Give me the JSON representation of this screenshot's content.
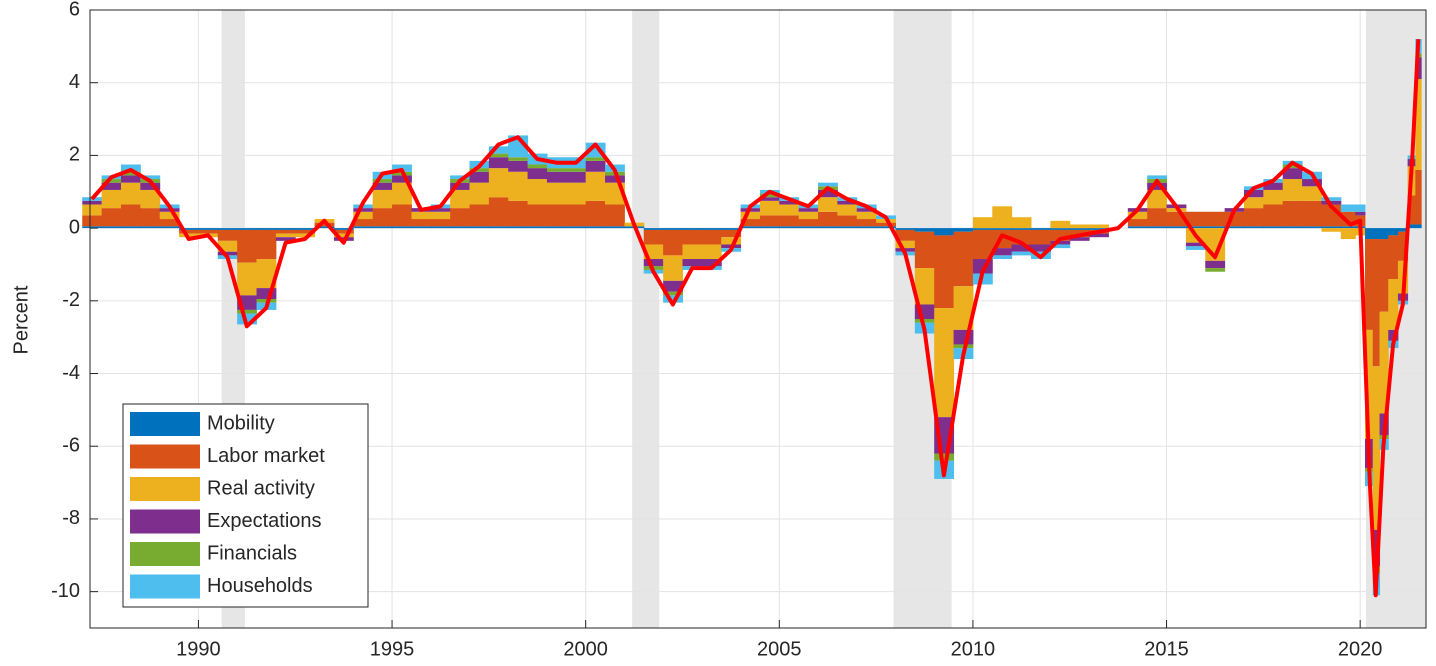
{
  "chart_data": {
    "type": "stacked-bar-line",
    "ylabel": "Percent",
    "x": [
      1987.25,
      1987.75,
      1988.25,
      1988.75,
      1989.25,
      1989.75,
      1990.25,
      1990.75,
      1991.25,
      1991.75,
      1992.25,
      1992.75,
      1993.25,
      1993.75,
      1994.25,
      1994.75,
      1995.25,
      1995.75,
      1996.25,
      1996.75,
      1997.25,
      1997.75,
      1998.25,
      1998.75,
      1999.25,
      1999.75,
      2000.25,
      2000.75,
      2001.25,
      2001.75,
      2002.25,
      2002.75,
      2003.25,
      2003.75,
      2004.25,
      2004.75,
      2005.25,
      2005.75,
      2006.25,
      2006.75,
      2007.25,
      2007.75,
      2008.25,
      2008.75,
      2009.25,
      2009.75,
      2010.25,
      2010.75,
      2011.25,
      2011.75,
      2012.25,
      2012.75,
      2013.25,
      2013.75,
      2014.25,
      2014.75,
      2015.25,
      2015.75,
      2016.25,
      2016.75,
      2017.25,
      2017.75,
      2018.25,
      2018.75,
      2019.25,
      2019.75,
      2020.0,
      2020.25,
      2020.4,
      2020.6,
      2020.85,
      2021.1,
      2021.35,
      2021.5
    ],
    "series": [
      {
        "name": "Mobility",
        "color": "#0072BD",
        "values": [
          0.05,
          0.05,
          0.05,
          0.05,
          0.05,
          -0.05,
          -0.05,
          -0.05,
          -0.05,
          -0.05,
          -0.05,
          -0.05,
          0.05,
          -0.05,
          0.05,
          0.05,
          0.05,
          0.05,
          0.05,
          0.05,
          0.05,
          0.05,
          0.05,
          0.05,
          0.05,
          0.05,
          0.05,
          0.05,
          0.05,
          -0.05,
          -0.05,
          -0.05,
          -0.05,
          -0.05,
          0.05,
          0.05,
          0.05,
          0.05,
          0.05,
          0.05,
          0.05,
          0.05,
          -0.05,
          -0.1,
          -0.2,
          -0.1,
          -0.05,
          -0.05,
          -0.05,
          -0.05,
          -0.05,
          -0.05,
          -0.05,
          0,
          0.05,
          0.05,
          0.05,
          0.05,
          0.05,
          0.05,
          0.05,
          0.05,
          0.05,
          0.05,
          0.05,
          0.05,
          0.05,
          -0.3,
          -0.3,
          -0.3,
          -0.2,
          -0.1,
          0.1,
          0.1
        ]
      },
      {
        "name": "Labor market",
        "color": "#D95319",
        "values": [
          0.3,
          0.5,
          0.6,
          0.5,
          0.2,
          -0.1,
          -0.1,
          -0.3,
          -0.9,
          -0.8,
          -0.1,
          -0.1,
          0.1,
          -0.1,
          0.2,
          0.5,
          0.6,
          0.2,
          0.2,
          0.5,
          0.6,
          0.8,
          0.7,
          0.6,
          0.6,
          0.6,
          0.7,
          0.6,
          0,
          -0.4,
          -0.7,
          -0.4,
          -0.4,
          -0.2,
          0.2,
          0.3,
          0.3,
          0.2,
          0.4,
          0.3,
          0.2,
          0.1,
          -0.3,
          -1.0,
          -2.0,
          -1.5,
          -0.8,
          -0.5,
          -0.4,
          -0.4,
          -0.3,
          -0.2,
          -0.1,
          0,
          0.2,
          0.5,
          0.4,
          0.4,
          0.4,
          0.4,
          0.5,
          0.6,
          0.7,
          0.7,
          0.6,
          0.4,
          0.3,
          -2.5,
          -3.5,
          -2.0,
          -1.2,
          -0.8,
          0.8,
          1.5
        ]
      },
      {
        "name": "Real activity",
        "color": "#EDB120",
        "values": [
          0.3,
          0.5,
          0.6,
          0.5,
          0.2,
          -0.1,
          -0.1,
          -0.3,
          -0.9,
          -0.8,
          -0.1,
          -0.1,
          0.1,
          -0.1,
          0.2,
          0.5,
          0.6,
          0.2,
          0.2,
          0.5,
          0.6,
          0.8,
          0.8,
          0.7,
          0.6,
          0.6,
          0.8,
          0.6,
          0.1,
          -0.4,
          -0.7,
          -0.4,
          -0.4,
          -0.2,
          0.2,
          0.4,
          0.3,
          0.2,
          0.4,
          0.3,
          0.2,
          0.1,
          -0.2,
          -1.0,
          -3.0,
          -1.2,
          0.3,
          0.6,
          0.3,
          0,
          0.2,
          0.1,
          0.1,
          0,
          0.2,
          0.5,
          0.1,
          -0.4,
          -0.9,
          0,
          0.3,
          0.4,
          0.6,
          0.4,
          -0.1,
          -0.3,
          -0.2,
          -3.0,
          -4.5,
          -2.8,
          -1.4,
          -0.9,
          0.8,
          2.5
        ]
      },
      {
        "name": "Expectations",
        "color": "#7E2F8E",
        "values": [
          0.1,
          0.2,
          0.2,
          0.2,
          0.1,
          0,
          0,
          -0.1,
          -0.4,
          -0.3,
          -0.1,
          0,
          0,
          -0.1,
          0.1,
          0.2,
          0.2,
          0.1,
          0.1,
          0.2,
          0.3,
          0.3,
          0.3,
          0.3,
          0.3,
          0.3,
          0.3,
          0.2,
          0,
          -0.2,
          -0.3,
          -0.2,
          -0.2,
          -0.1,
          0.1,
          0.1,
          0.1,
          0.1,
          0.2,
          0.1,
          0.1,
          0,
          -0.1,
          -0.4,
          -1.0,
          -0.4,
          -0.4,
          -0.2,
          -0.2,
          -0.2,
          -0.1,
          -0.1,
          -0.1,
          0,
          0.1,
          0.2,
          0.1,
          -0.1,
          -0.2,
          0.1,
          0.2,
          0.2,
          0.3,
          0.2,
          0.1,
          0,
          0.1,
          -0.8,
          -1.0,
          -0.6,
          -0.3,
          -0.2,
          0.2,
          0.6
        ]
      },
      {
        "name": "Financials",
        "color": "#77AC30",
        "values": [
          0,
          0.1,
          0.1,
          0.1,
          0,
          0,
          0,
          0,
          -0.1,
          -0.1,
          0,
          0,
          0,
          0,
          0,
          0.1,
          0.1,
          0,
          0,
          0.1,
          0.1,
          0.1,
          0.1,
          0.1,
          0.1,
          0.1,
          0.1,
          0.1,
          0,
          -0.1,
          -0.1,
          0,
          0,
          0,
          0,
          0.1,
          0,
          0,
          0.1,
          0,
          0,
          0,
          0,
          -0.1,
          -0.2,
          -0.1,
          0,
          0,
          0,
          0,
          0,
          0,
          0,
          0,
          0,
          0.1,
          0,
          0,
          -0.1,
          0,
          0,
          0,
          0.1,
          0,
          0,
          0,
          0,
          -0.1,
          -0.2,
          -0.1,
          0,
          0,
          0,
          0.1
        ]
      },
      {
        "name": "Households",
        "color": "#4DBEEE",
        "values": [
          0.1,
          0.1,
          0.2,
          0.1,
          0.1,
          0,
          0,
          -0.1,
          -0.3,
          -0.2,
          0,
          0,
          0,
          0,
          0.1,
          0.2,
          0.2,
          0,
          0.1,
          0.1,
          0.2,
          0.2,
          0.6,
          0.3,
          0.3,
          0.3,
          0.4,
          0.2,
          0,
          -0.1,
          -0.2,
          -0.1,
          -0.1,
          -0.1,
          0.1,
          0.1,
          0.1,
          0.1,
          0.1,
          0.1,
          0.1,
          0.1,
          -0.1,
          -0.3,
          -0.5,
          -0.3,
          -0.3,
          -0.1,
          -0.1,
          -0.2,
          -0.1,
          0,
          0,
          0,
          0,
          0.1,
          0,
          -0.1,
          0,
          0,
          0.1,
          0.1,
          0.1,
          0.2,
          0.1,
          0.2,
          0.2,
          -0.4,
          -0.6,
          -0.3,
          -0.2,
          -0.1,
          0.1,
          0.4
        ]
      }
    ],
    "line": {
      "color": "#ff0000",
      "values": [
        0.8,
        1.4,
        1.6,
        1.3,
        0.6,
        -0.3,
        -0.2,
        -0.8,
        -2.7,
        -2.2,
        -0.4,
        -0.3,
        0.2,
        -0.4,
        0.7,
        1.5,
        1.6,
        0.5,
        0.6,
        1.3,
        1.7,
        2.3,
        2.5,
        1.9,
        1.8,
        1.8,
        2.3,
        1.6,
        0.1,
        -1.2,
        -2.1,
        -1.1,
        -1.1,
        -0.6,
        0.6,
        1.0,
        0.8,
        0.6,
        1.1,
        0.8,
        0.6,
        0.3,
        -0.7,
        -2.8,
        -6.8,
        -3.5,
        -1.2,
        -0.2,
        -0.4,
        -0.8,
        -0.3,
        -0.2,
        -0.1,
        0,
        0.5,
        1.3,
        0.6,
        -0.2,
        -0.8,
        0.5,
        1.1,
        1.3,
        1.8,
        1.5,
        0.6,
        0.1,
        0.2,
        -7,
        -10.1,
        -6,
        -3.2,
        -2.1,
        2,
        5.2
      ]
    },
    "recessions": [
      [
        1990.6,
        1991.2
      ],
      [
        2001.2,
        2001.9
      ],
      [
        2007.95,
        2009.45
      ],
      [
        2020.15,
        2021.7
      ]
    ],
    "recession_color": "#e6e6e6",
    "xlim": [
      1987.2,
      2021.7
    ],
    "xticks": [
      1990,
      1995,
      2000,
      2005,
      2010,
      2015,
      2020
    ],
    "ylim": [
      -11,
      6
    ],
    "yticks": [
      -10,
      -8,
      -6,
      -4,
      -2,
      0,
      2,
      4,
      6
    ],
    "grid": true,
    "legend": "lower left"
  }
}
